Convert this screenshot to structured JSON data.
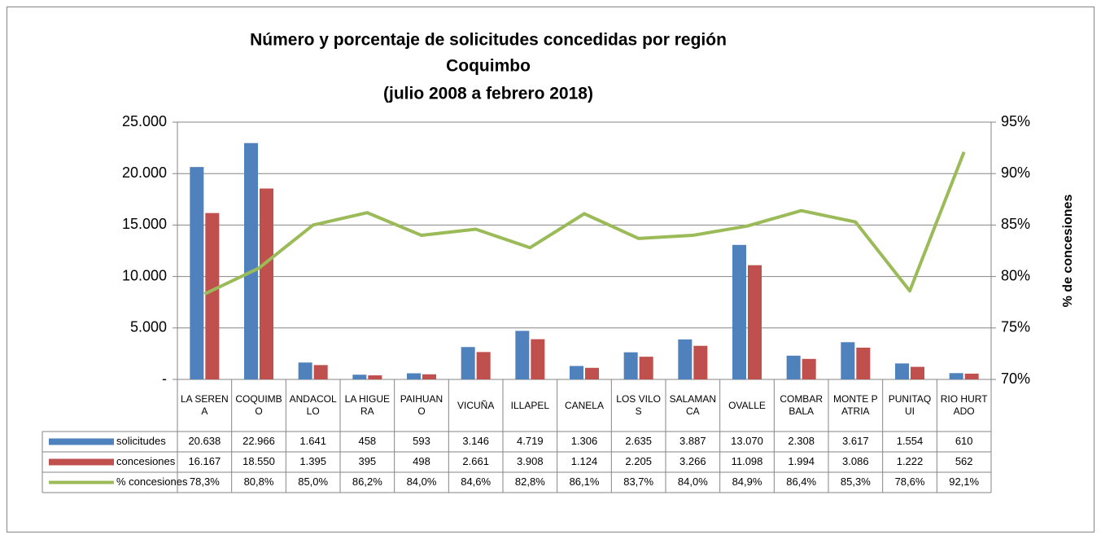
{
  "chart_data": {
    "type": "bar",
    "title": [
      "Número y porcentaje de solicitudes concedidas por región",
      "Coquimbo",
      "(julio 2008 a febrero 2018)"
    ],
    "y2label": "% de concesiones",
    "categories": [
      "LA SERENA",
      "COQUIMBO",
      "ANDACOLLO",
      "LA HIGUERA",
      "PAIHUANO",
      "VICUÑA",
      "ILLAPEL",
      "CANELA",
      "LOS VILOS",
      "SALAMANCA",
      "OVALLE",
      "COMBARBALA",
      "MONTE PATRIA",
      "PUNITAQUI",
      "RIO HURTADO"
    ],
    "series": [
      {
        "name": "solicitudes",
        "color": "#4f81bd",
        "type": "bar",
        "values": [
          20638,
          22966,
          1641,
          458,
          593,
          3146,
          4719,
          1306,
          2635,
          3887,
          13070,
          2308,
          3617,
          1554,
          610
        ],
        "value_labels": [
          "20.638",
          "22.966",
          "1.641",
          "458",
          "593",
          "3.146",
          "4.719",
          "1.306",
          "2.635",
          "3.887",
          "13.070",
          "2.308",
          "3.617",
          "1.554",
          "610"
        ]
      },
      {
        "name": "concesiones",
        "color": "#c0504d",
        "type": "bar",
        "values": [
          16167,
          18550,
          1395,
          395,
          498,
          2661,
          3908,
          1124,
          2205,
          3266,
          11098,
          1994,
          3086,
          1222,
          562
        ],
        "value_labels": [
          "16.167",
          "18.550",
          "1.395",
          "395",
          "498",
          "2.661",
          "3.908",
          "1.124",
          "2.205",
          "3.266",
          "11.098",
          "1.994",
          "3.086",
          "1.222",
          "562"
        ]
      },
      {
        "name": "% concesiones",
        "color": "#9bbb59",
        "type": "line",
        "axis": "y2",
        "values": [
          78.3,
          80.8,
          85.0,
          86.2,
          84.0,
          84.6,
          82.8,
          86.1,
          83.7,
          84.0,
          84.9,
          86.4,
          85.3,
          78.6,
          92.1
        ],
        "value_labels": [
          "78,3%",
          "80,8%",
          "85,0%",
          "86,2%",
          "84,0%",
          "84,6%",
          "82,8%",
          "86,1%",
          "83,7%",
          "84,0%",
          "84,9%",
          "86,4%",
          "85,3%",
          "78,6%",
          "92,1%"
        ]
      }
    ],
    "ylim": [
      0,
      25000
    ],
    "yticks": [
      {
        "value": 0,
        "label": "-"
      },
      {
        "value": 5000,
        "label": "5.000"
      },
      {
        "value": 10000,
        "label": "10.000"
      },
      {
        "value": 15000,
        "label": "15.000"
      },
      {
        "value": 20000,
        "label": "20.000"
      },
      {
        "value": 25000,
        "label": "25.000"
      }
    ],
    "y2lim": [
      70,
      95
    ],
    "y2ticks": [
      {
        "value": 70,
        "label": "70%"
      },
      {
        "value": 75,
        "label": "75%"
      },
      {
        "value": 80,
        "label": "80%"
      },
      {
        "value": 85,
        "label": "85%"
      },
      {
        "value": 90,
        "label": "90%"
      },
      {
        "value": 95,
        "label": "95%"
      }
    ],
    "grid": true
  }
}
